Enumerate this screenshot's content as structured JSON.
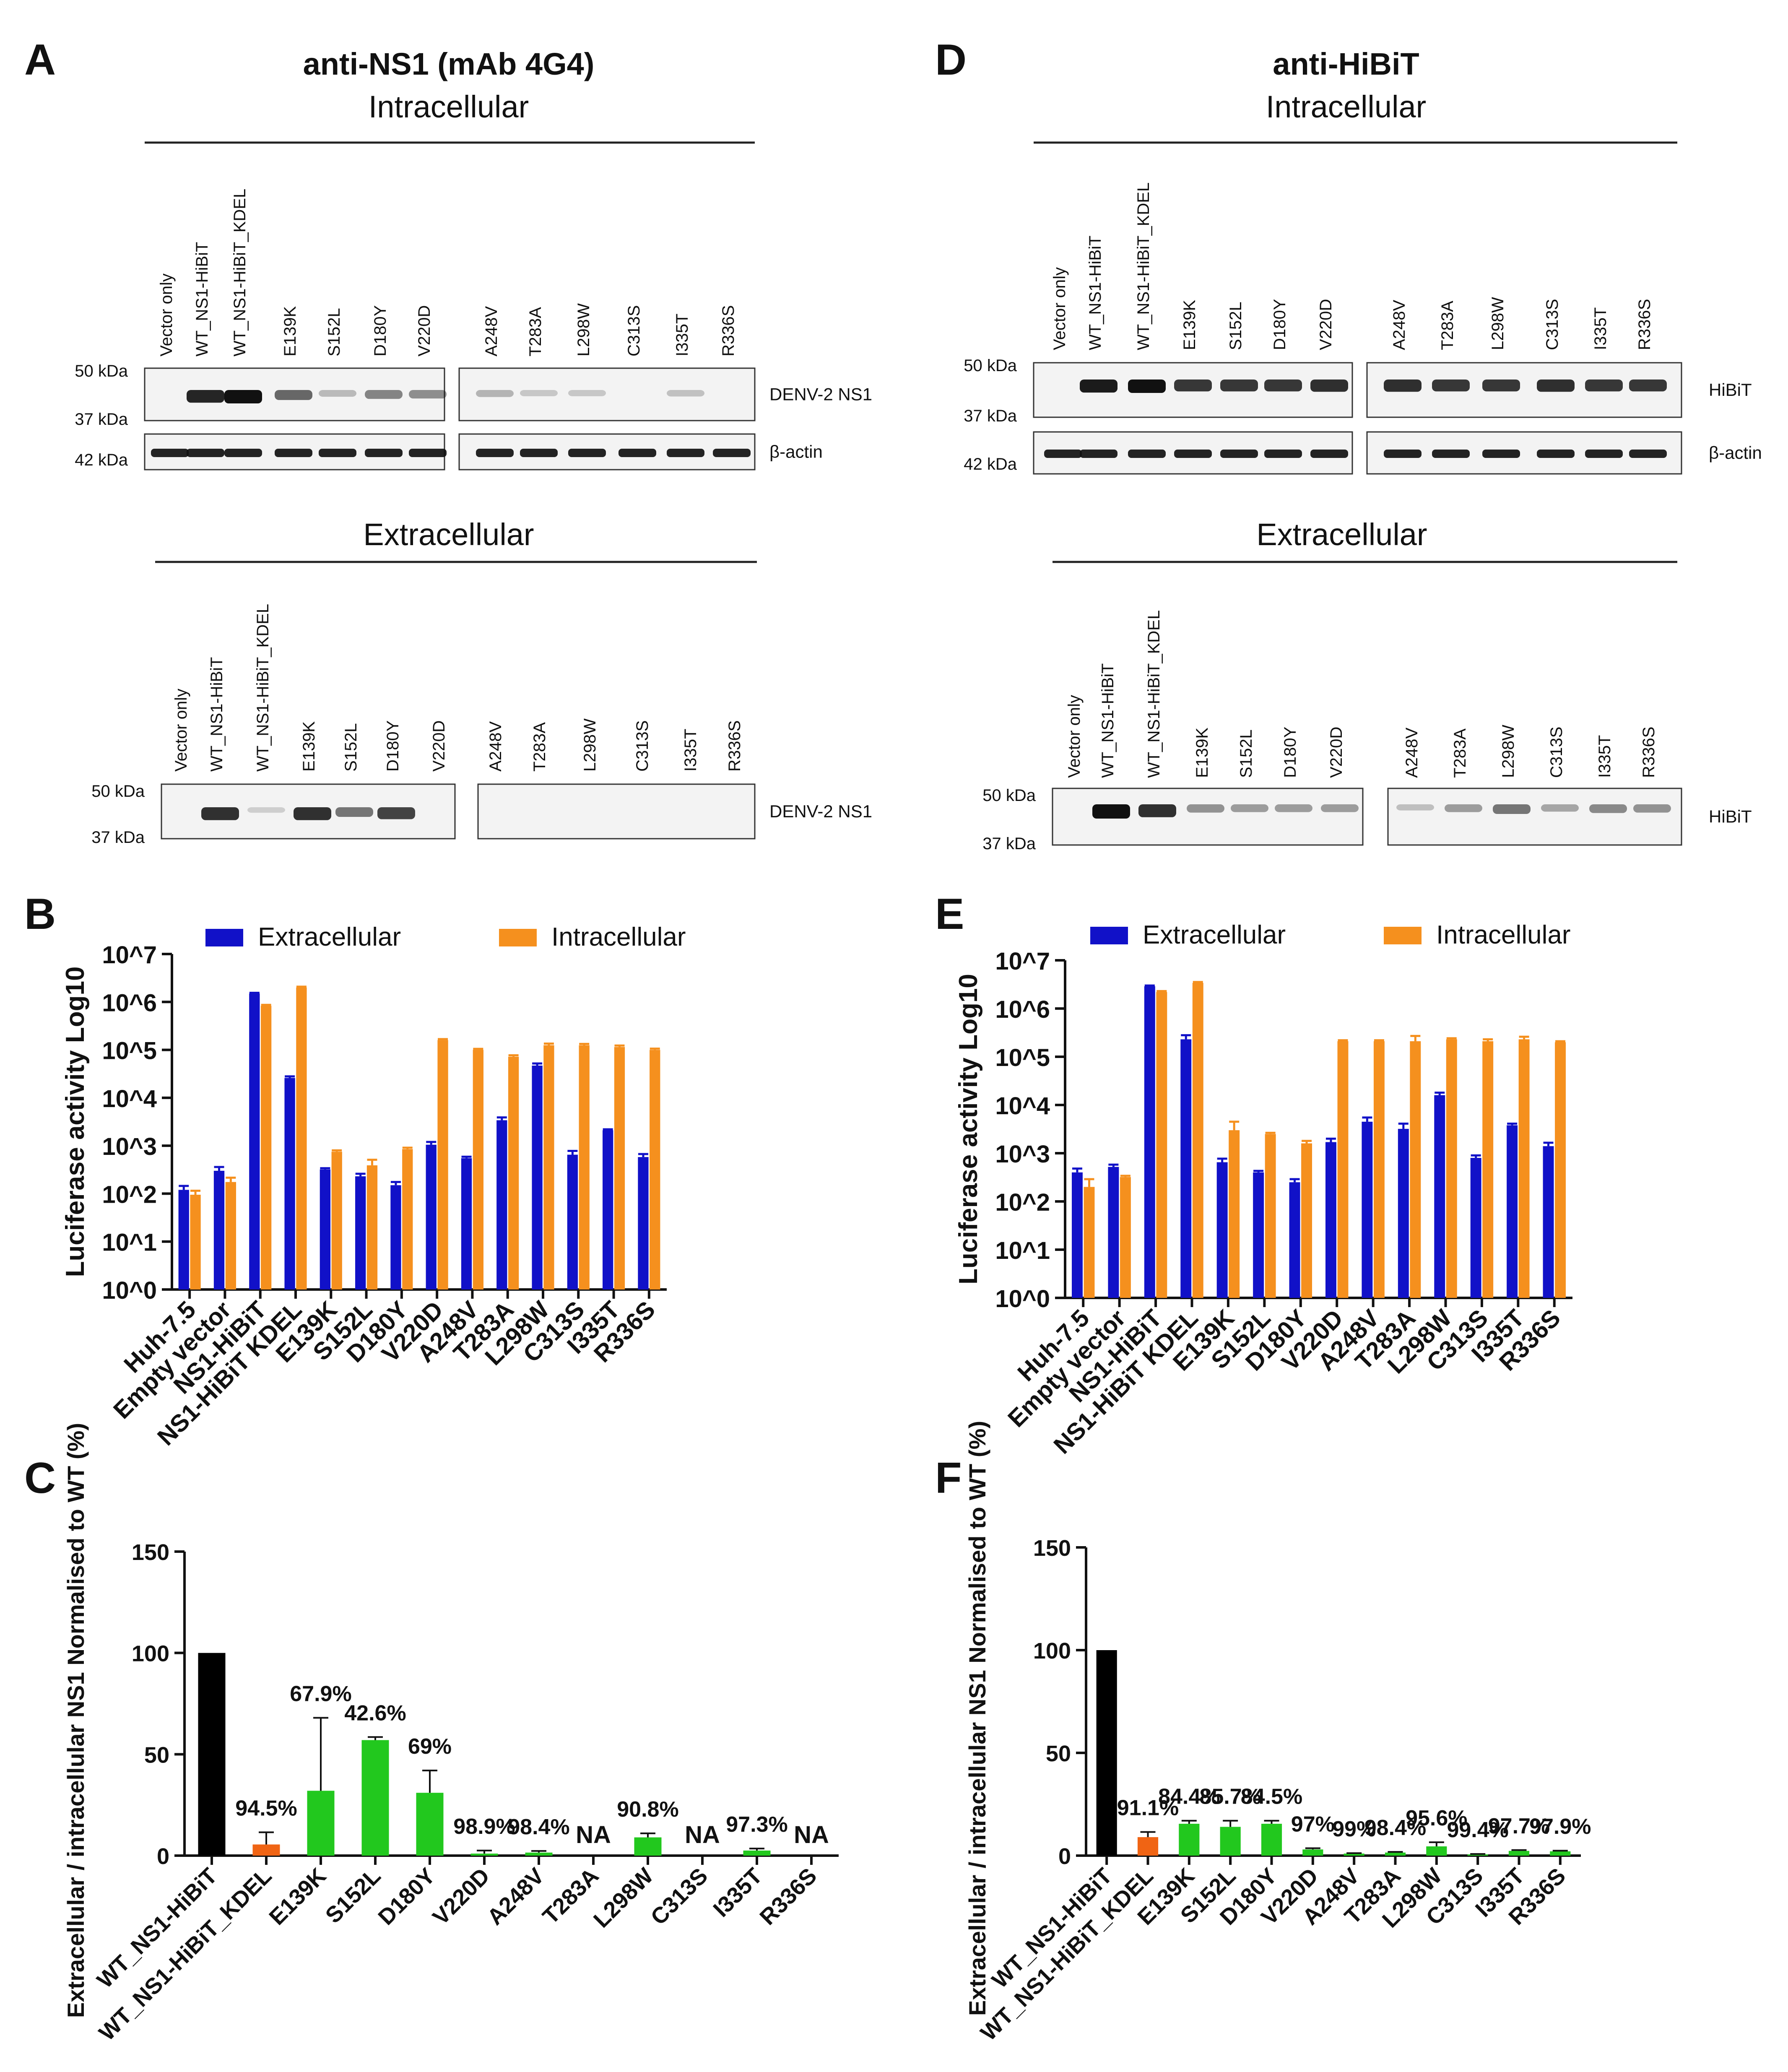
{
  "figure": {
    "panels": {
      "A": {
        "letter": "A",
        "title": "anti-NS1 (mAb 4G4)",
        "intra_header": "Intracellular",
        "extra_header": "Extracellular",
        "intra_lanes_left": [
          "Vector only",
          "WT_NS1-HiBiT",
          "WT_NS1-HiBiT_KDEL",
          "E139K",
          "S152L",
          "D180Y",
          "V220D"
        ],
        "intra_lanes_right": [
          "A248V",
          "T283A",
          "L298W",
          "C313S",
          "I335T",
          "R336S"
        ],
        "extra_lanes_left": [
          "Vector only",
          "WT_NS1-HiBiT",
          "WT_NS1-HiBiT_KDEL",
          "E139K",
          "S152L",
          "D180Y",
          "V220D"
        ],
        "extra_lanes_right": [
          "A248V",
          "T283A",
          "L298W",
          "C313S",
          "I335T",
          "R336S"
        ],
        "marker_50": "50 kDa",
        "marker_37": "37 kDa",
        "marker_42": "42 kDa",
        "blot_target": "DENV-2 NS1",
        "loading_control": "β-actin",
        "extra_blot_target": "DENV-2 NS1"
      },
      "D": {
        "letter": "D",
        "title": "anti-HiBiT",
        "intra_header": "Intracellular",
        "extra_header": "Extracellular",
        "intra_lanes_left": [
          "Vector only",
          "WT_NS1-HiBiT",
          "WT_NS1-HiBiT_KDEL",
          "E139K",
          "S152L",
          "D180Y",
          "V220D"
        ],
        "intra_lanes_right": [
          "A248V",
          "T283A",
          "L298W",
          "C313S",
          "I335T",
          "R336S"
        ],
        "extra_lanes_left": [
          "Vector only",
          "WT_NS1-HiBiT",
          "WT_NS1-HiBiT_KDEL",
          "E139K",
          "S152L",
          "D180Y",
          "V220D"
        ],
        "extra_lanes_right": [
          "A248V",
          "T283A",
          "L298W",
          "C313S",
          "I335T",
          "R336S"
        ],
        "marker_50": "50 kDa",
        "marker_37": "37 kDa",
        "marker_42": "42 kDa",
        "blot_target": "HiBiT",
        "loading_control": "β-actin",
        "extra_blot_target": "HiBiT"
      },
      "B": {
        "letter": "B"
      },
      "C": {
        "letter": "C"
      },
      "E": {
        "letter": "E"
      },
      "F": {
        "letter": "F"
      }
    }
  },
  "chart_data": [
    {
      "panel": "B",
      "type": "bar",
      "ylabel": "Luciferase activity Log10",
      "yscale": "log",
      "ylim": [
        1,
        10000000
      ],
      "yticks": [
        "10^0",
        "10^1",
        "10^2",
        "10^3",
        "10^4",
        "10^5",
        "10^6",
        "10^7"
      ],
      "categories": [
        "Huh-7.5",
        "Empty vector",
        "NS1-HiBiT",
        "NS1-HiBiT KDEL",
        "E139K",
        "S152L",
        "D180Y",
        "V220D",
        "A248V",
        "T283A",
        "L298W",
        "C313S",
        "I335T",
        "R336S"
      ],
      "series": [
        {
          "name": "Extracellular",
          "color": "#1111c8",
          "values": [
            120,
            300,
            1500000,
            26000,
            320,
            230,
            150,
            1050,
            550,
            3400,
            47000,
            650,
            2100,
            580
          ],
          "errors": [
            25,
            60,
            50000,
            2000,
            20,
            30,
            25,
            150,
            40,
            500,
            5000,
            130,
            100,
            90
          ]
        },
        {
          "name": "Intracellular",
          "color": "#f5901e",
          "values": [
            95,
            175,
            830000,
            2000000,
            750,
            390,
            850,
            160000,
            100000,
            72000,
            125000,
            125000,
            115000,
            100000
          ],
          "errors": [
            20,
            40,
            40000,
            80000,
            50,
            120,
            60,
            8000,
            5000,
            5000,
            10000,
            8000,
            8000,
            6000
          ]
        }
      ]
    },
    {
      "panel": "C",
      "type": "bar",
      "ylabel": "Extracellular / intracellular NS1 Normalised to WT (%)",
      "ylim": [
        0,
        150
      ],
      "yticks": [
        "0",
        "50",
        "100",
        "150"
      ],
      "categories": [
        "WT_NS1-HiBiT",
        "WT_NS1-HiBiT_KDEL",
        "E139K",
        "S152L",
        "D180Y",
        "V220D",
        "A248V",
        "T283A",
        "L298W",
        "C313S",
        "I335T",
        "R336S"
      ],
      "values": [
        100,
        5.5,
        32,
        57,
        31,
        1,
        1.5,
        0,
        9,
        0,
        2.5,
        0
      ],
      "errors": [
        0,
        6,
        36,
        1.5,
        11,
        1.5,
        0.8,
        0,
        2,
        0,
        1,
        0
      ],
      "colors": [
        "#000000",
        "#f06414",
        "#22c81e",
        "#22c81e",
        "#22c81e",
        "#22c81e",
        "#22c81e",
        "#22c81e",
        "#22c81e",
        "#22c81e",
        "#22c81e",
        "#22c81e"
      ],
      "labels": [
        "",
        "94.5%",
        "67.9%",
        "42.6%",
        "69%",
        "98.9%",
        "98.4%",
        "NA",
        "90.8%",
        "NA",
        "97.3%",
        "NA"
      ]
    },
    {
      "panel": "E",
      "type": "bar",
      "ylabel": "Luciferase activity Log10",
      "yscale": "log",
      "ylim": [
        1,
        10000000
      ],
      "yticks": [
        "10^0",
        "10^1",
        "10^2",
        "10^3",
        "10^4",
        "10^5",
        "10^6",
        "10^7"
      ],
      "categories": [
        "Huh-7.5",
        "Empty vector",
        "NS1-HiBiT",
        "NS1-HiBiT KDEL",
        "E139K",
        "S152L",
        "D180Y",
        "V220D",
        "A248V",
        "T283A",
        "L298W",
        "C313S",
        "I335T",
        "R336S"
      ],
      "series": [
        {
          "name": "Extracellular",
          "color": "#1111c8",
          "values": [
            400,
            520,
            2900000,
            230000,
            650,
            400,
            250,
            1700,
            4500,
            3200,
            16000,
            800,
            3800,
            1400
          ],
          "errors": [
            80,
            60,
            100000,
            50000,
            120,
            30,
            40,
            300,
            1000,
            900,
            2000,
            100,
            300,
            250
          ]
        },
        {
          "name": "Intracellular",
          "color": "#f5901e",
          "values": [
            200,
            320,
            2200000,
            3400000,
            3000,
            2500,
            1600,
            210000,
            210000,
            210000,
            230000,
            210000,
            230000,
            200000
          ],
          "errors": [
            90,
            20,
            100000,
            150000,
            1500,
            150,
            200,
            10000,
            10000,
            60000,
            12000,
            20000,
            30000,
            10000
          ]
        }
      ]
    },
    {
      "panel": "F",
      "type": "bar",
      "ylabel": "Extracellular / intracellular NS1 Normalised to WT (%)",
      "ylim": [
        0,
        150
      ],
      "yticks": [
        "0",
        "50",
        "100",
        "150"
      ],
      "categories": [
        "WT_NS1-HiBiT",
        "WT_NS1-HiBiT_KDEL",
        "E139K",
        "S152L",
        "D180Y",
        "V220D",
        "A248V",
        "T283A",
        "L298W",
        "C313S",
        "I335T",
        "R336S"
      ],
      "values": [
        100,
        9,
        15.5,
        14,
        15.5,
        3,
        1,
        1.5,
        4.5,
        0.6,
        2.3,
        2.1
      ],
      "errors": [
        0,
        2.5,
        1.5,
        3,
        1.5,
        0.6,
        0.2,
        0.3,
        2,
        0.2,
        0.4,
        0.3
      ],
      "colors": [
        "#000000",
        "#f06414",
        "#22c81e",
        "#22c81e",
        "#22c81e",
        "#22c81e",
        "#22c81e",
        "#22c81e",
        "#22c81e",
        "#22c81e",
        "#22c81e",
        "#22c81e"
      ],
      "labels": [
        "",
        "91.1%",
        "84.4%",
        "85.7%",
        "84.5%",
        "97%",
        "99%",
        "98.4%",
        "95.6%",
        "99.4%",
        "97.7%",
        "97.9%"
      ]
    }
  ]
}
